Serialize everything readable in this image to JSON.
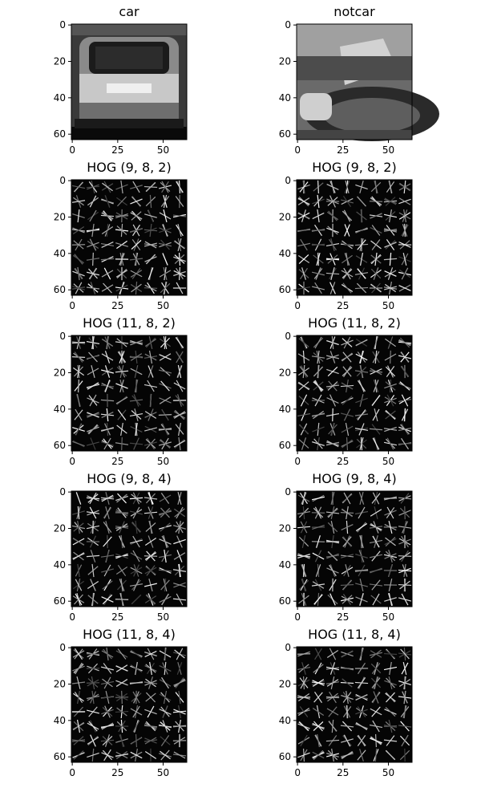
{
  "chart_data": [
    {
      "type": "image",
      "title": "car",
      "image": "car",
      "xticks": [
        0,
        25,
        50
      ],
      "yticks": [
        0,
        20,
        40,
        60
      ],
      "xlim": [
        0,
        63
      ],
      "ylim": [
        63,
        0
      ]
    },
    {
      "type": "image",
      "title": "notcar",
      "image": "notcar",
      "xticks": [
        0,
        25,
        50
      ],
      "yticks": [
        0,
        20,
        40,
        60
      ],
      "xlim": [
        0,
        63
      ],
      "ylim": [
        63,
        0
      ]
    },
    {
      "type": "image",
      "title": "HOG (9, 8, 2)",
      "image": "car",
      "xticks": [
        0,
        25,
        50
      ],
      "yticks": [
        0,
        20,
        40,
        60
      ],
      "xlim": [
        0,
        63
      ],
      "ylim": [
        63,
        0
      ]
    },
    {
      "type": "image",
      "title": "HOG (9, 8, 2)",
      "image": "notcar",
      "xticks": [
        0,
        25,
        50
      ],
      "yticks": [
        0,
        20,
        40,
        60
      ],
      "xlim": [
        0,
        63
      ],
      "ylim": [
        63,
        0
      ]
    },
    {
      "type": "image",
      "title": "HOG (11, 8, 2)",
      "image": "car",
      "xticks": [
        0,
        25,
        50
      ],
      "yticks": [
        0,
        20,
        40,
        60
      ],
      "xlim": [
        0,
        63
      ],
      "ylim": [
        63,
        0
      ]
    },
    {
      "type": "image",
      "title": "HOG (11, 8, 2)",
      "image": "notcar",
      "xticks": [
        0,
        25,
        50
      ],
      "yticks": [
        0,
        20,
        40,
        60
      ],
      "xlim": [
        0,
        63
      ],
      "ylim": [
        63,
        0
      ]
    },
    {
      "type": "image",
      "title": "HOG (9, 8, 4)",
      "image": "car",
      "xticks": [
        0,
        25,
        50
      ],
      "yticks": [
        0,
        20,
        40,
        60
      ],
      "xlim": [
        0,
        63
      ],
      "ylim": [
        63,
        0
      ]
    },
    {
      "type": "image",
      "title": "HOG (9, 8, 4)",
      "image": "notcar",
      "xticks": [
        0,
        25,
        50
      ],
      "yticks": [
        0,
        20,
        40,
        60
      ],
      "xlim": [
        0,
        63
      ],
      "ylim": [
        63,
        0
      ]
    },
    {
      "type": "image",
      "title": "HOG (11, 8, 4)",
      "image": "car",
      "xticks": [
        0,
        25,
        50
      ],
      "yticks": [
        0,
        20,
        40,
        60
      ],
      "xlim": [
        0,
        63
      ],
      "ylim": [
        63,
        0
      ]
    },
    {
      "type": "image",
      "title": "HOG (11, 8, 4)",
      "image": "notcar",
      "xticks": [
        0,
        25,
        50
      ],
      "yticks": [
        0,
        20,
        40,
        60
      ],
      "xlim": [
        0,
        63
      ],
      "ylim": [
        63,
        0
      ]
    }
  ],
  "colors": {
    "background": "#ffffff",
    "image_dark": "#050505",
    "hog_line": "#ffffff",
    "axis": "#000000"
  }
}
